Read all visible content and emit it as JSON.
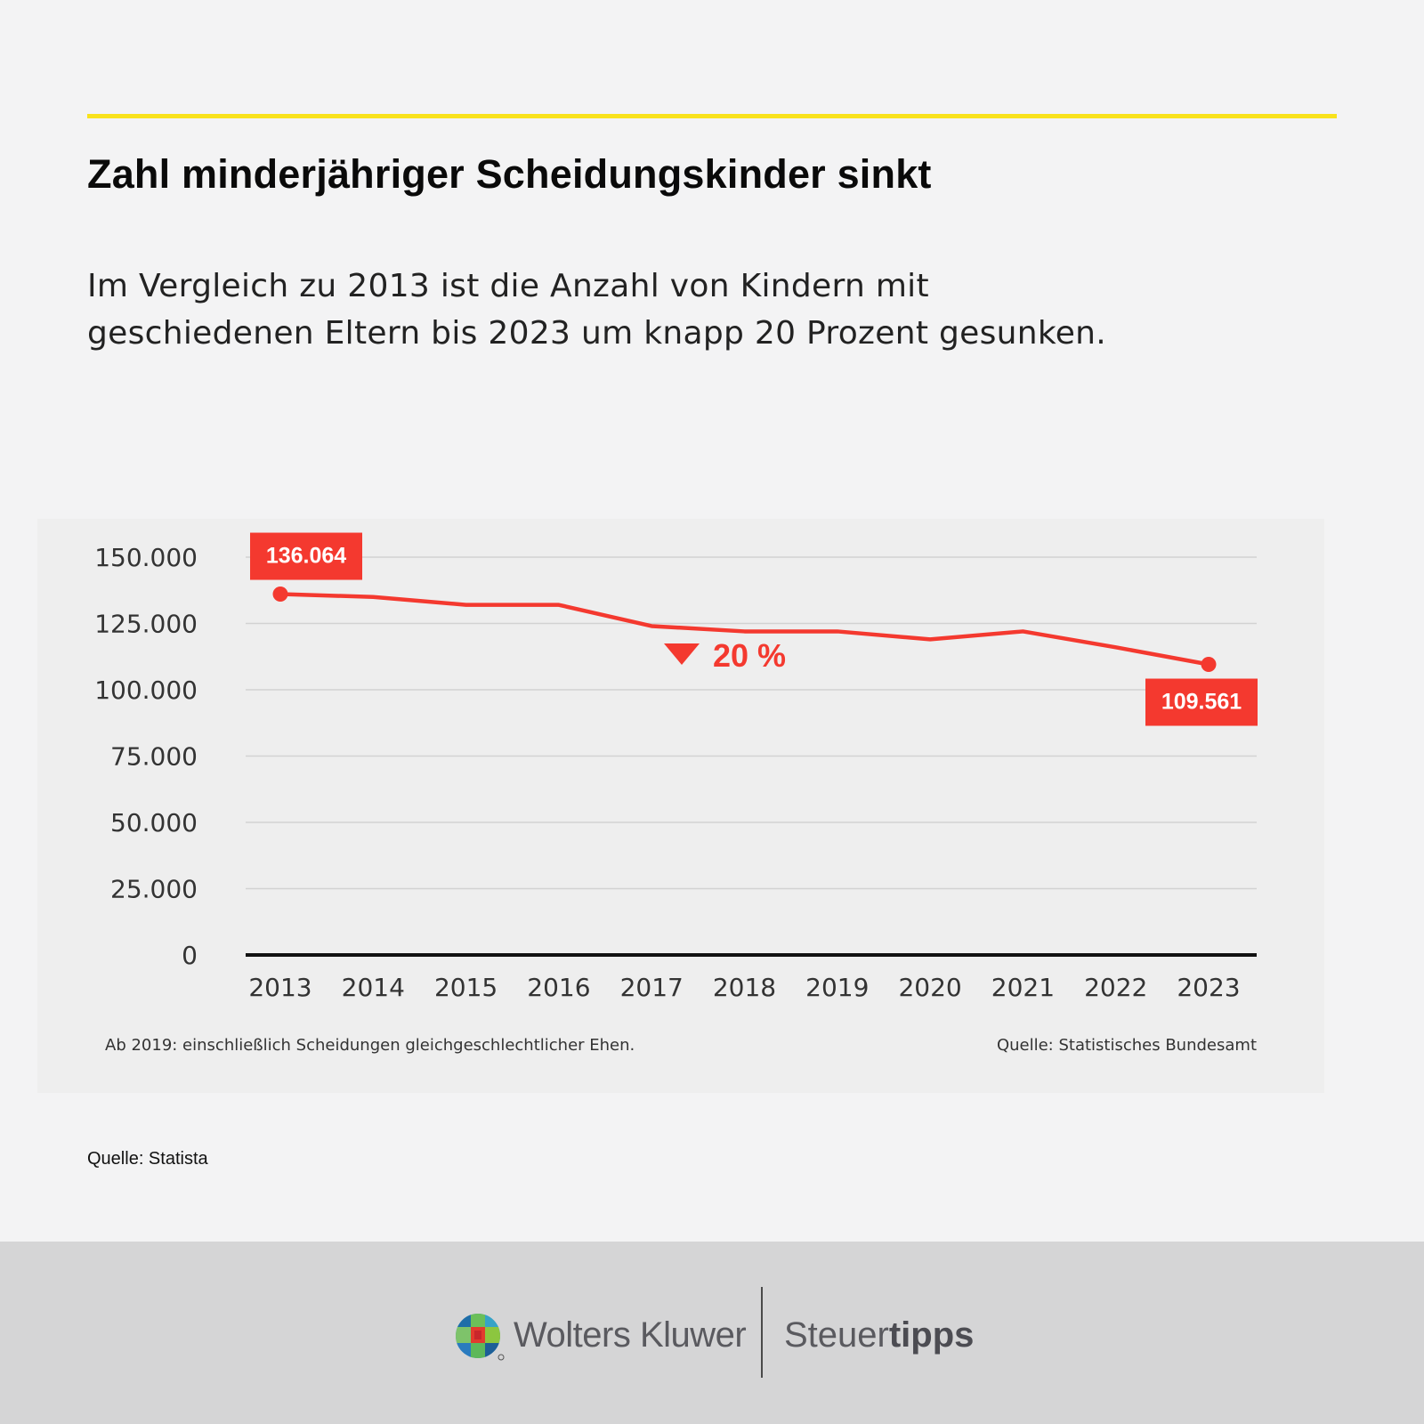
{
  "title": "Zahl minderjähriger Scheidungskinder sinkt",
  "subtitle_lines": [
    "Im Vergleich zu 2013 ist die Anzahl von Kindern mit",
    "geschiedenen Eltern bis 2023 um knapp 20 Prozent gesunken."
  ],
  "accent_color": "#f9e21c",
  "chart_data": {
    "type": "line",
    "x": [
      "2013",
      "2014",
      "2015",
      "2016",
      "2017",
      "2018",
      "2019",
      "2020",
      "2021",
      "2022",
      "2023"
    ],
    "series": [
      {
        "values": [
          136064,
          135000,
          132000,
          132000,
          124000,
          122000,
          122000,
          119000,
          122000,
          116000,
          109561
        ],
        "color": "#f4392f"
      }
    ],
    "ylim": [
      0,
      150000
    ],
    "y_ticks": [
      0,
      25000,
      50000,
      75000,
      100000,
      125000,
      150000
    ],
    "y_tick_labels": [
      "0",
      "25.000",
      "50.000",
      "75.000",
      "100.000",
      "125.000",
      "150.000"
    ],
    "value_labels": [
      {
        "x": "2013",
        "text": "136.064"
      },
      {
        "x": "2023",
        "text": "109.561"
      }
    ],
    "change_annotation": {
      "direction": "down",
      "text": "20 %"
    },
    "grid": true,
    "footnote": "Ab 2019: einschließlich Scheidungen gleichgeschlechtlicher Ehen.",
    "source": "Quelle: Statistisches Bundesamt"
  },
  "footer_source": "Quelle: Statista",
  "brand": {
    "logo": "wolters-kluwer-logo",
    "company": "Wolters Kluwer",
    "product_prefix": "Steuer",
    "product_suffix": "tipps"
  }
}
